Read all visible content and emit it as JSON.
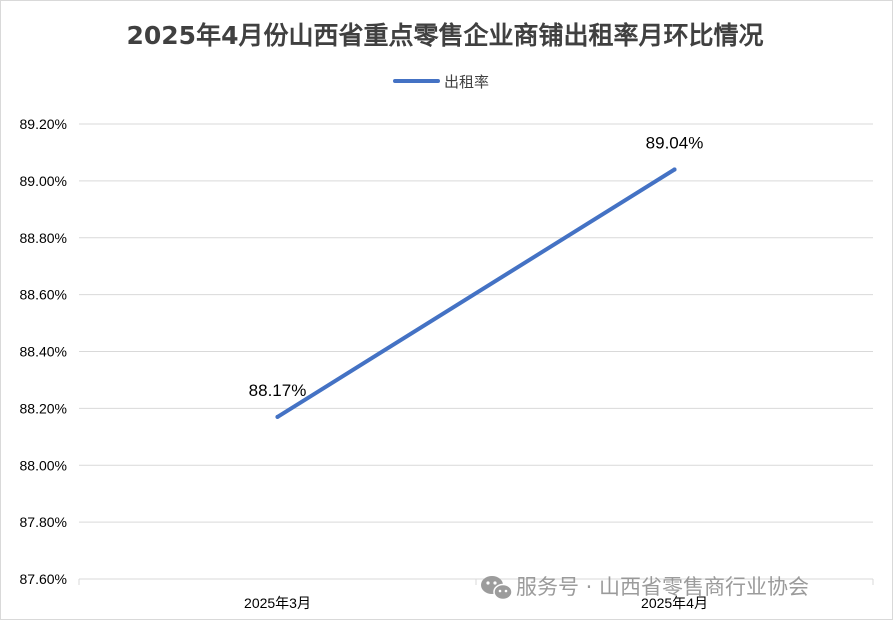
{
  "chart_data": {
    "type": "line",
    "title": "2025年4月份山西省重点零售企业商铺出租率月环比情况",
    "categories": [
      "2025年3月",
      "2025年4月"
    ],
    "series": [
      {
        "name": "出租率",
        "values": [
          88.17,
          89.04
        ],
        "data_labels": [
          "88.17%",
          "89.04%"
        ],
        "color": "#4472c4"
      }
    ],
    "xlabel": "",
    "ylabel": "",
    "ylim": [
      87.6,
      89.2
    ],
    "y_tick_values": [
      87.6,
      87.8,
      88.0,
      88.2,
      88.4,
      88.6,
      88.8,
      89.0,
      89.2
    ],
    "y_tick_labels": [
      "87.60%",
      "87.80%",
      "88.00%",
      "88.20%",
      "88.40%",
      "88.60%",
      "88.80%",
      "89.00%",
      "89.20%"
    ],
    "grid": true,
    "legend_position": "top"
  },
  "watermark": {
    "text": "服务号 · 山西省零售商行业协会",
    "icon": "wechat-icon"
  },
  "colors": {
    "grid": "#d9d9d9",
    "title": "#404040",
    "line": "#4472c4",
    "watermark": "#8a8a8a"
  }
}
